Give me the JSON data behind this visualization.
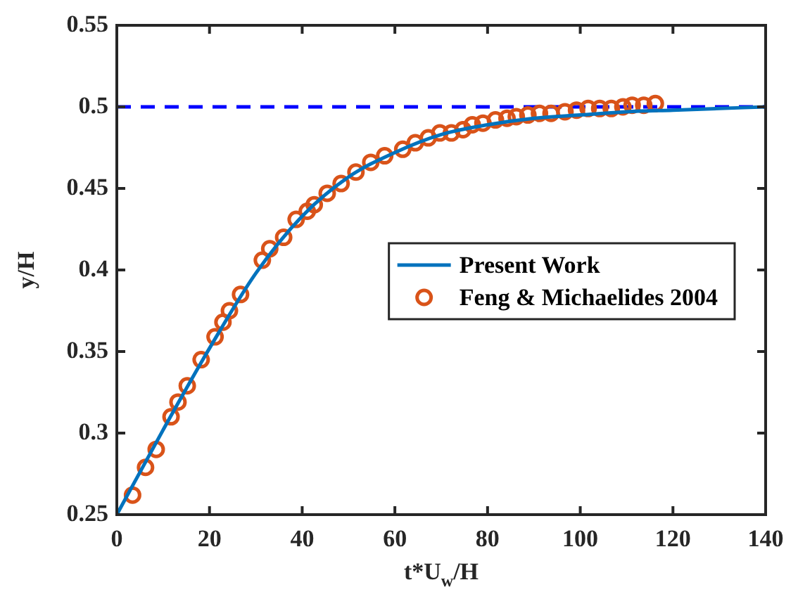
{
  "chart_data": {
    "type": "line",
    "xlabel": "t*U$_{w}$/H",
    "ylabel": "y/H",
    "xlim": [
      0,
      140
    ],
    "xticks": [
      0,
      20,
      40,
      60,
      80,
      100,
      120,
      140
    ],
    "ylim": [
      0.25,
      0.55
    ],
    "yticks": [
      0.25,
      0.3,
      0.35,
      0.4,
      0.45,
      0.5,
      0.55
    ],
    "legend": "right",
    "ref_lines": [
      {
        "axis": "y",
        "value": 0.5,
        "color": "#0000ff",
        "line_style": "dashed"
      }
    ],
    "series": [
      {
        "name": "Present Work",
        "color": "#0072bd",
        "marker": "none",
        "line_style": "solid",
        "x": [
          0,
          10,
          20,
          30,
          40,
          50,
          60,
          70,
          80,
          90,
          100,
          110,
          120,
          130,
          140
        ],
        "values": [
          0.25,
          0.302,
          0.352,
          0.398,
          0.433,
          0.457,
          0.472,
          0.483,
          0.489,
          0.493,
          0.495,
          0.497,
          0.498,
          0.499,
          0.5
        ]
      },
      {
        "name": "Feng & Michaelides 2004",
        "type": "scatter",
        "color": "#d95319",
        "marker": "circle",
        "x": [
          3.4,
          6.2,
          8.5,
          11.7,
          13.2,
          15.2,
          18.2,
          21.2,
          22.9,
          24.3,
          26.7,
          31.4,
          33,
          36,
          38.7,
          41.1,
          42.6,
          45.4,
          48.4,
          51.6,
          54.8,
          57.8,
          61.7,
          64.4,
          67.2,
          69.7,
          72.2,
          74.7,
          76.7,
          79,
          81.7,
          84.2,
          86.2,
          88.7,
          91.2,
          93.7,
          96.7,
          99.2,
          101.7,
          104.2,
          106.7,
          109.2,
          111.2,
          113.7,
          116.2
        ],
        "values": [
          0.262,
          0.279,
          0.29,
          0.31,
          0.319,
          0.329,
          0.345,
          0.359,
          0.368,
          0.375,
          0.385,
          0.406,
          0.413,
          0.42,
          0.431,
          0.436,
          0.44,
          0.447,
          0.453,
          0.46,
          0.466,
          0.47,
          0.474,
          0.478,
          0.481,
          0.484,
          0.484,
          0.486,
          0.489,
          0.49,
          0.492,
          0.493,
          0.494,
          0.495,
          0.496,
          0.496,
          0.497,
          0.498,
          0.499,
          0.499,
          0.499,
          0.5,
          0.501,
          0.501,
          0.502
        ]
      }
    ]
  }
}
